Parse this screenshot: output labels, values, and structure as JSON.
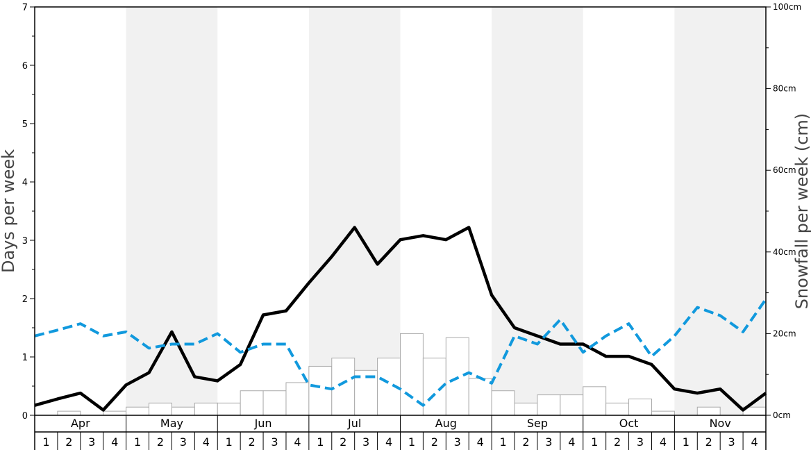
{
  "chart_data": {
    "type": "bar+line",
    "title": "",
    "y_left_label": "Days per week",
    "y_right_label": "Snowfall per week (cm)",
    "y_left_range": [
      0,
      7
    ],
    "y_left_ticks": [
      "0",
      "1",
      "2",
      "3",
      "4",
      "5",
      "6",
      "7"
    ],
    "y_right_range": [
      0,
      100
    ],
    "y_right_ticks": [
      "0cm",
      "20cm",
      "40cm",
      "60cm",
      "80cm",
      "100cm"
    ],
    "months": [
      "Apr",
      "May",
      "Jun",
      "Jul",
      "Aug",
      "Sep",
      "Oct",
      "Nov"
    ],
    "week_labels": [
      "1",
      "2",
      "3",
      "4"
    ],
    "grid": false,
    "legend": "none",
    "series": [
      {
        "type": "bar",
        "axis": "right",
        "color": "#ffffff",
        "stroke": "#aaaaaa",
        "values": [
          0.0,
          1.0,
          0.0,
          1.0,
          2.0,
          3.0,
          2.0,
          3.0,
          3.0,
          6.0,
          6.0,
          8.0,
          12.0,
          14.0,
          11.0,
          14.0,
          20.0,
          14.0,
          19.0,
          9.0,
          6.0,
          3.0,
          5.0,
          5.0,
          7.0,
          3.0,
          4.0,
          1.0,
          0.0,
          2.0,
          0.0,
          2.0
        ]
      },
      {
        "type": "line",
        "axis": "left",
        "style": "solid",
        "color": "#000000",
        "values": [
          0.17,
          0.28,
          0.38,
          0.09,
          0.52,
          0.73,
          1.43,
          0.66,
          0.59,
          0.87,
          1.72,
          1.79,
          2.27,
          2.72,
          3.22,
          2.59,
          3.01,
          3.08,
          3.01,
          3.22,
          2.06,
          1.5,
          1.36,
          1.22,
          1.22,
          1.01,
          1.01,
          0.87,
          0.45,
          0.38,
          0.45,
          0.09,
          0.38
        ]
      },
      {
        "type": "line",
        "axis": "left",
        "style": "dashed",
        "color": "#1199dd",
        "values": [
          1.36,
          1.46,
          1.57,
          1.36,
          1.43,
          1.15,
          1.22,
          1.22,
          1.4,
          1.08,
          1.22,
          1.22,
          0.52,
          0.45,
          0.66,
          0.66,
          0.45,
          0.17,
          0.55,
          0.73,
          0.55,
          1.36,
          1.22,
          1.64,
          1.08,
          1.36,
          1.57,
          1.01,
          1.36,
          1.85,
          1.71,
          1.43,
          1.99
        ]
      }
    ]
  }
}
